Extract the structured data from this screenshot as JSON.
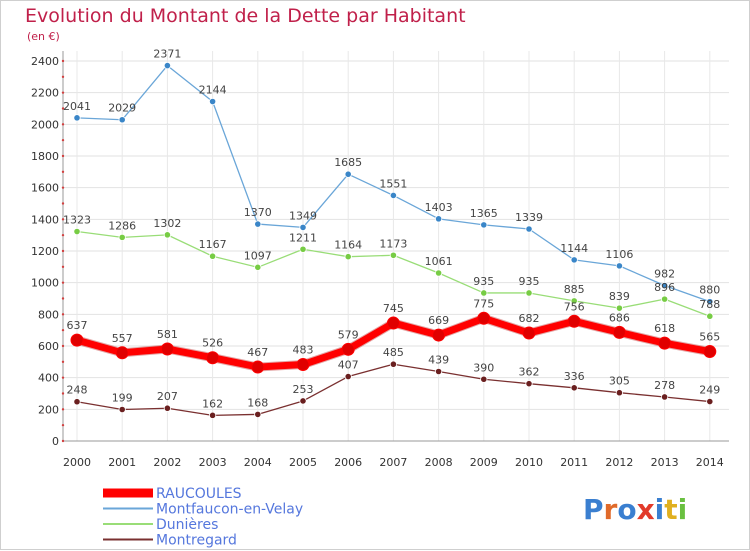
{
  "header": {
    "title": "Evolution du Montant de la Dette par Habitant",
    "subtitle": "(en €)"
  },
  "logo": {
    "text": "Proxiti"
  },
  "chart_data": {
    "type": "line",
    "title": "Evolution du Montant de la Dette par Habitant",
    "subtitle": "(en €)",
    "xlabel": "",
    "ylabel": "",
    "x": [
      "2000",
      "2001",
      "2002",
      "2003",
      "2004",
      "2005",
      "2006",
      "2007",
      "2008",
      "2009",
      "2010",
      "2011",
      "2012",
      "2013",
      "2014"
    ],
    "yticks": [
      0,
      200,
      400,
      600,
      800,
      1000,
      1200,
      1400,
      1600,
      1800,
      2000,
      2200,
      2400
    ],
    "ylim": [
      0,
      2400
    ],
    "grid": true,
    "legend_position": "bottom-left",
    "series": [
      {
        "name": "RAUCOULES",
        "color": "#ff0000",
        "point_color": "#e00000",
        "width": 7,
        "values": [
          637,
          557,
          581,
          526,
          467,
          483,
          579,
          745,
          669,
          775,
          682,
          756,
          686,
          618,
          565
        ]
      },
      {
        "name": "Montfaucon-en-Velay",
        "color": "#6aa6d8",
        "point_color": "#3a86c8",
        "width": 1.3,
        "values": [
          2041,
          2029,
          2371,
          2144,
          1370,
          1349,
          1685,
          1551,
          1403,
          1365,
          1339,
          1144,
          1106,
          982,
          880
        ]
      },
      {
        "name": "Dunières",
        "color": "#99dd77",
        "point_color": "#77cc44",
        "width": 1.3,
        "values": [
          1323,
          1286,
          1302,
          1167,
          1097,
          1211,
          1164,
          1173,
          1061,
          935,
          935,
          885,
          839,
          896,
          788
        ]
      },
      {
        "name": "Montregard",
        "color": "#7a3030",
        "point_color": "#6a1f1f",
        "width": 1.3,
        "values": [
          248,
          199,
          207,
          162,
          168,
          253,
          407,
          485,
          439,
          390,
          362,
          336,
          305,
          278,
          249
        ]
      }
    ],
    "labels": [
      {
        "series": 0,
        "text": [
          "637",
          "557",
          "581",
          "526",
          "467",
          "483",
          "579",
          "745",
          "669",
          "775",
          "682",
          "756",
          "686",
          "618",
          "565"
        ]
      },
      {
        "series": 1,
        "text": [
          "2041",
          "2029",
          "2371",
          "2144",
          "1370",
          "1349",
          "1685",
          "1551",
          "1403",
          "1365",
          "1339",
          "1144",
          "1106",
          "982",
          "880"
        ]
      },
      {
        "series": 2,
        "text": [
          "1323",
          "1286",
          "1302",
          "1167",
          "1097",
          "1211",
          "1164",
          "1173",
          "1061",
          "935",
          "935",
          "885",
          "839",
          "896",
          "788"
        ]
      },
      {
        "series": 3,
        "text": [
          "248",
          "199",
          "207",
          "162",
          "168",
          "253",
          "407",
          "485",
          "439",
          "390",
          "362",
          "336",
          "305",
          "278",
          "249"
        ]
      }
    ]
  }
}
